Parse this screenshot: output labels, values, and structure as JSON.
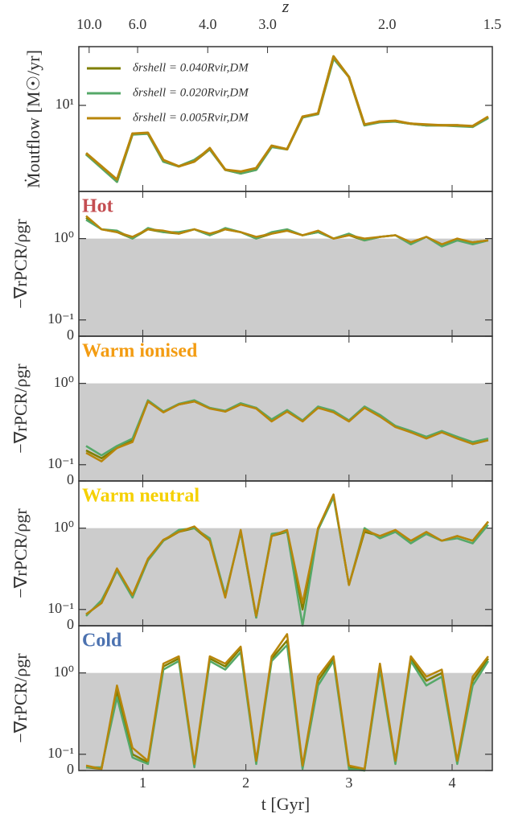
{
  "chart_data": {
    "type": "line",
    "xlabel": "t [Gyr]",
    "x2label": "z",
    "xlim": [
      0.38,
      4.39
    ],
    "xticks": [
      1,
      2,
      3,
      4
    ],
    "x2ticks": [
      {
        "value": 0.48,
        "label": "10.0"
      },
      {
        "value": 0.95,
        "label": "6.0"
      },
      {
        "value": 1.63,
        "label": "4.0"
      },
      {
        "value": 2.21,
        "label": "3.0"
      },
      {
        "value": 3.37,
        "label": "2.0"
      },
      {
        "value": 4.39,
        "label": "1.5"
      }
    ],
    "x": [
      0.45,
      0.6,
      0.75,
      0.9,
      1.05,
      1.2,
      1.35,
      1.5,
      1.65,
      1.8,
      1.95,
      2.1,
      2.25,
      2.4,
      2.55,
      2.7,
      2.85,
      3.0,
      3.15,
      3.3,
      3.45,
      3.6,
      3.75,
      3.9,
      4.05,
      4.2,
      4.35
    ],
    "panels": [
      {
        "ylabel": "Ṁoutflow [M☉/yr]",
        "yscale": "log",
        "ylim": [
          2,
          30
        ],
        "yticks": [
          {
            "value": 10,
            "label": "10¹"
          }
        ],
        "series": [
          {
            "name": "δrshell = 0.040Rvir,DM",
            "color": "#7f7f00",
            "values": [
              4.0,
              3.2,
              2.4,
              5.9,
              5.9,
              3.5,
              3.2,
              3.5,
              4.4,
              3.0,
              2.8,
              3.0,
              4.7,
              4.4,
              8.0,
              8.6,
              25,
              17,
              6.9,
              7.4,
              7.4,
              7.1,
              6.9,
              6.9,
              6.9,
              6.7,
              8.0
            ]
          },
          {
            "name": "δrshell = 0.020Rvir,DM",
            "color": "#55a868",
            "values": [
              4.0,
              3.1,
              2.4,
              5.8,
              5.9,
              3.5,
              3.2,
              3.6,
              4.4,
              3.0,
              2.8,
              3.0,
              4.6,
              4.4,
              8.0,
              8.5,
              24,
              17,
              6.9,
              7.3,
              7.4,
              7.1,
              6.9,
              6.9,
              6.8,
              6.7,
              7.9
            ]
          },
          {
            "name": "δrshell = 0.005Rvir,DM",
            "color": "#b8860b",
            "values": [
              4.1,
              3.2,
              2.5,
              5.9,
              6.0,
              3.6,
              3.2,
              3.5,
              4.5,
              3.0,
              2.9,
              3.1,
              4.7,
              4.4,
              8.1,
              8.6,
              25,
              17,
              7.0,
              7.4,
              7.5,
              7.1,
              7.0,
              6.9,
              6.9,
              6.8,
              8.1
            ]
          }
        ]
      },
      {
        "title": "Hot",
        "title_color": "#c44e52",
        "ylabel": "−∇rPCR/ρgr",
        "yscale": "symlog",
        "ylim": [
          0,
          3.8
        ],
        "shade_below": 1,
        "yticks": [
          0,
          {
            "value": 0.1,
            "label": "10⁻¹"
          },
          {
            "value": 1,
            "label": "10⁰"
          }
        ],
        "series": [
          {
            "color": "#7f7f00",
            "values": [
              1.8,
              1.3,
              1.2,
              1.0,
              1.3,
              1.2,
              1.15,
              1.3,
              1.1,
              1.3,
              1.2,
              1.0,
              1.15,
              1.25,
              1.1,
              1.2,
              1.0,
              1.1,
              0.95,
              1.05,
              1.1,
              0.9,
              1.05,
              0.85,
              0.95,
              0.9,
              0.95
            ]
          },
          {
            "color": "#55a868",
            "values": [
              1.7,
              1.3,
              1.25,
              1.0,
              1.35,
              1.2,
              1.2,
              1.3,
              1.1,
              1.35,
              1.2,
              1.0,
              1.2,
              1.3,
              1.1,
              1.2,
              1.0,
              1.15,
              0.95,
              1.05,
              1.1,
              0.85,
              1.05,
              0.8,
              0.95,
              0.85,
              0.95
            ]
          },
          {
            "color": "#b8860b",
            "values": [
              1.9,
              1.3,
              1.2,
              1.05,
              1.3,
              1.25,
              1.15,
              1.3,
              1.15,
              1.3,
              1.2,
              1.05,
              1.15,
              1.25,
              1.1,
              1.25,
              1.0,
              1.1,
              1.0,
              1.05,
              1.1,
              0.9,
              1.05,
              0.85,
              1.0,
              0.9,
              0.95
            ]
          }
        ]
      },
      {
        "title": "Warm ionised",
        "title_color": "#f39c12",
        "ylabel": "−∇rPCR/ρgr",
        "yscale": "symlog",
        "ylim": [
          0,
          3.8
        ],
        "shade_below": 1,
        "yticks": [
          0,
          {
            "value": 0.1,
            "label": "10⁻¹"
          },
          {
            "value": 1,
            "label": "10⁰"
          }
        ],
        "series": [
          {
            "color": "#7f7f00",
            "values": [
              0.15,
              0.12,
              0.16,
              0.2,
              0.6,
              0.45,
              0.55,
              0.6,
              0.5,
              0.45,
              0.55,
              0.5,
              0.35,
              0.45,
              0.35,
              0.5,
              0.45,
              0.35,
              0.5,
              0.4,
              0.3,
              0.25,
              0.22,
              0.25,
              0.22,
              0.18,
              0.2
            ]
          },
          {
            "color": "#55a868",
            "values": [
              0.17,
              0.13,
              0.17,
              0.21,
              0.62,
              0.45,
              0.56,
              0.62,
              0.5,
              0.46,
              0.57,
              0.5,
              0.36,
              0.47,
              0.35,
              0.52,
              0.46,
              0.35,
              0.52,
              0.41,
              0.3,
              0.26,
              0.22,
              0.26,
              0.22,
              0.19,
              0.21
            ]
          },
          {
            "color": "#b8860b",
            "values": [
              0.14,
              0.11,
              0.16,
              0.19,
              0.6,
              0.44,
              0.55,
              0.6,
              0.49,
              0.45,
              0.55,
              0.49,
              0.34,
              0.45,
              0.34,
              0.5,
              0.44,
              0.34,
              0.5,
              0.39,
              0.29,
              0.25,
              0.21,
              0.25,
              0.21,
              0.18,
              0.2
            ]
          }
        ]
      },
      {
        "title": "Warm neutral",
        "title_color": "#f5d000",
        "ylabel": "−∇rPCR/ρgr",
        "yscale": "symlog",
        "ylim": [
          0,
          3.8
        ],
        "shade_below": 1,
        "yticks": [
          0,
          {
            "value": 0.1,
            "label": "10⁻¹"
          },
          {
            "value": 1,
            "label": "10⁰"
          }
        ],
        "series": [
          {
            "color": "#7f7f00",
            "values": [
              0.07,
              0.12,
              0.3,
              0.15,
              0.4,
              0.7,
              0.9,
              1.0,
              0.7,
              0.15,
              0.9,
              0.05,
              0.8,
              0.9,
              0.1,
              1.0,
              2.5,
              0.2,
              0.9,
              0.8,
              0.9,
              0.7,
              0.85,
              0.7,
              0.8,
              0.7,
              1.2
            ]
          },
          {
            "color": "#55a868",
            "values": [
              0.06,
              0.13,
              0.3,
              0.14,
              0.4,
              0.7,
              0.95,
              1.0,
              0.75,
              0.15,
              0.9,
              0.05,
              0.85,
              0.9,
              0,
              0.95,
              2.4,
              0.2,
              1.0,
              0.75,
              0.9,
              0.65,
              0.85,
              0.7,
              0.75,
              0.65,
              1.1
            ]
          },
          {
            "color": "#b8860b",
            "values": [
              0.07,
              0.12,
              0.32,
              0.15,
              0.42,
              0.72,
              0.9,
              1.05,
              0.7,
              0.14,
              0.95,
              0.06,
              0.8,
              0.95,
              0.12,
              1.0,
              2.6,
              0.2,
              0.95,
              0.8,
              0.95,
              0.7,
              0.9,
              0.7,
              0.8,
              0.7,
              1.2
            ]
          }
        ]
      },
      {
        "title": "Cold",
        "title_color": "#4c72b0",
        "ylabel": "−∇rPCR/ρgr",
        "yscale": "symlog",
        "ylim": [
          0,
          3.8
        ],
        "shade_below": 1,
        "yticks": [
          0,
          {
            "value": 0.1,
            "label": "10⁻¹"
          },
          {
            "value": 1,
            "label": "10⁰"
          }
        ],
        "series": [
          {
            "color": "#7f7f00",
            "values": [
              0.02,
              0.01,
              0.6,
              0.1,
              0.05,
              1.2,
              1.5,
              0.03,
              1.5,
              1.2,
              2.0,
              0.05,
              1.5,
              2.5,
              0.02,
              0.8,
              1.5,
              0.02,
              0,
              1.2,
              0.05,
              1.5,
              0.8,
              1.0,
              0.05,
              0.8,
              1.5
            ]
          },
          {
            "color": "#55a868",
            "values": [
              0.02,
              0.02,
              0.5,
              0.08,
              0.04,
              1.1,
              1.4,
              0.02,
              1.4,
              1.1,
              1.8,
              0.04,
              1.4,
              2.2,
              0.01,
              0.7,
              1.4,
              0.01,
              0,
              1.1,
              0.04,
              1.4,
              0.7,
              0.9,
              0.04,
              0.7,
              1.4
            ]
          },
          {
            "color": "#b8860b",
            "values": [
              0.03,
              0.01,
              0.7,
              0.12,
              0.06,
              1.3,
              1.6,
              0.04,
              1.6,
              1.3,
              2.1,
              0.06,
              1.6,
              3.0,
              0.03,
              0.9,
              1.6,
              0.03,
              0.01,
              1.3,
              0.06,
              1.6,
              0.9,
              1.1,
              0.06,
              0.9,
              1.6
            ]
          }
        ]
      }
    ]
  }
}
